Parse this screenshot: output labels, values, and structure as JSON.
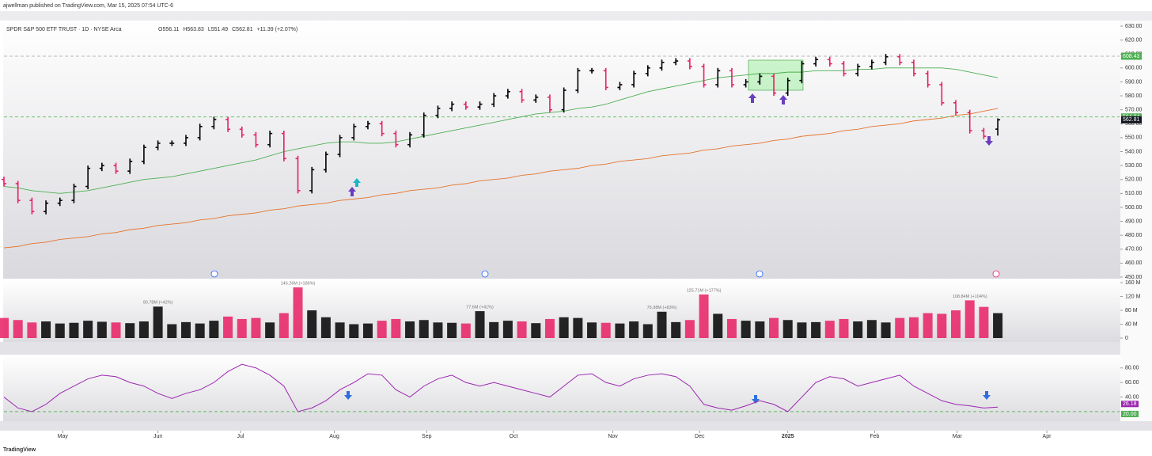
{
  "header": {
    "publisher": "ajwellman published on TradingView.com, Mar 15, 2025 07:54 UTC-6",
    "footer": "TradingView"
  },
  "chart_data": [
    {
      "type": "ohlc",
      "title": "SPDR S&P 500 ETF TRUST · 1D · NYSE Arca",
      "quote": [
        "O556.11",
        "H563.83",
        "L551.49",
        "C562.81",
        "+11.39 (+2.07%)"
      ],
      "up_color": "#000000",
      "down_color": "#e91e63",
      "xlim": [
        0,
        79.7
      ],
      "ylim": [
        450,
        630
      ],
      "yticks": [
        {
          "value": 630,
          "label": "630.00"
        },
        {
          "value": 620,
          "label": "620.00"
        },
        {
          "value": 610,
          "label": "610.00"
        },
        {
          "value": 600,
          "label": "600.00"
        },
        {
          "value": 590,
          "label": "590.00"
        },
        {
          "value": 580,
          "label": "580.00"
        },
        {
          "value": 570,
          "label": "570.00"
        },
        {
          "value": 560,
          "label": "560.00"
        },
        {
          "value": 550,
          "label": "550.00"
        },
        {
          "value": 540,
          "label": "540.00"
        },
        {
          "value": 530,
          "label": "530.00"
        },
        {
          "value": 520,
          "label": "520.00"
        },
        {
          "value": 510,
          "label": "510.00"
        },
        {
          "value": 500,
          "label": "500.00"
        },
        {
          "value": 490,
          "label": "490.00"
        },
        {
          "value": 480,
          "label": "480.00"
        },
        {
          "value": 470,
          "label": "470.00"
        },
        {
          "value": 460,
          "label": "460.00"
        },
        {
          "value": 450,
          "label": "450.00"
        }
      ],
      "open": [
        520,
        517,
        505,
        497,
        503,
        505,
        515,
        528,
        530,
        526,
        533,
        543,
        546,
        546,
        550,
        558,
        563,
        556,
        552,
        545,
        553,
        535,
        512,
        527,
        538,
        550,
        558,
        560,
        553,
        545,
        552,
        566,
        571,
        574,
        572,
        574,
        580,
        583,
        577,
        579,
        570,
        584,
        598,
        598,
        586,
        588,
        596,
        600,
        604,
        605,
        601,
        588,
        598,
        588,
        590,
        594,
        582,
        591,
        603,
        606,
        603,
        596,
        601,
        604,
        608,
        604,
        596,
        588,
        575,
        568,
        555,
        556.11
      ],
      "high": [
        522,
        519,
        507,
        505,
        507,
        517,
        530,
        532,
        532,
        535,
        545,
        548,
        548,
        552,
        560,
        565,
        565,
        558,
        554,
        555,
        555,
        537,
        529,
        540,
        552,
        560,
        562,
        562,
        555,
        554,
        568,
        573,
        576,
        576,
        576,
        582,
        585,
        585,
        581,
        581,
        586,
        600,
        600,
        600,
        590,
        598,
        602,
        606,
        607,
        607,
        603,
        600,
        600,
        592,
        596,
        596,
        593,
        605,
        608,
        608,
        605,
        603,
        606,
        610,
        610,
        606,
        598,
        590,
        577,
        570,
        557,
        563.83
      ],
      "low": [
        515,
        503,
        495,
        495,
        501,
        503,
        513,
        526,
        524,
        524,
        531,
        541,
        544,
        544,
        548,
        556,
        554,
        550,
        543,
        543,
        533,
        510,
        510,
        525,
        536,
        548,
        556,
        551,
        543,
        543,
        550,
        564,
        569,
        570,
        570,
        572,
        578,
        575,
        575,
        568,
        568,
        582,
        596,
        584,
        584,
        586,
        594,
        598,
        602,
        599,
        586,
        586,
        586,
        586,
        588,
        580,
        580,
        589,
        601,
        601,
        594,
        594,
        599,
        602,
        602,
        594,
        586,
        573,
        566,
        553,
        549,
        551.49
      ],
      "close": [
        517,
        505,
        497,
        503,
        505,
        515,
        528,
        530,
        526,
        533,
        543,
        546,
        546,
        550,
        558,
        563,
        556,
        552,
        545,
        553,
        535,
        512,
        527,
        538,
        550,
        558,
        560,
        553,
        545,
        552,
        566,
        571,
        574,
        572,
        574,
        580,
        583,
        577,
        579,
        570,
        584,
        598,
        598,
        586,
        588,
        596,
        600,
        604,
        605,
        601,
        588,
        598,
        588,
        590,
        594,
        582,
        591,
        603,
        606,
        603,
        596,
        601,
        604,
        608,
        604,
        596,
        588,
        575,
        568,
        555,
        551,
        562.81
      ],
      "overlays": [
        {
          "color": "#e5732b",
          "values": [
            471,
            472,
            474,
            475,
            477,
            478,
            479,
            481,
            482,
            484,
            485,
            487,
            488,
            489,
            491,
            492,
            494,
            495,
            496,
            498,
            499,
            501,
            502,
            503,
            505,
            506,
            507,
            509,
            510,
            512,
            513,
            514,
            516,
            517,
            519,
            520,
            521,
            523,
            524,
            526,
            527,
            528,
            530,
            531,
            533,
            534,
            535,
            537,
            538,
            539,
            541,
            542,
            544,
            545,
            546,
            548,
            549,
            551,
            552,
            553,
            555,
            556,
            558,
            559,
            560,
            562,
            563,
            564,
            566,
            567,
            569,
            571
          ]
        },
        {
          "color": "#4caf50",
          "values": [
            515,
            514,
            512,
            511,
            510,
            511,
            512,
            514,
            516,
            518,
            520,
            521,
            522,
            524,
            526,
            528,
            530,
            532,
            534,
            537,
            540,
            542,
            544,
            546,
            547,
            547,
            546,
            546,
            547,
            549,
            551,
            553,
            555,
            557,
            559,
            561,
            563,
            565,
            567,
            568,
            569,
            571,
            572,
            574,
            577,
            580,
            583,
            585,
            587,
            589,
            591,
            593,
            594,
            595,
            596,
            596,
            597,
            597,
            598,
            598,
            598,
            599,
            599,
            600,
            600,
            600,
            600,
            600,
            599,
            597,
            595,
            593
          ]
        }
      ],
      "levels": [
        {
          "value": 608.43,
          "color": "#4caf50",
          "line": "#9e9e9e"
        },
        {
          "value": 564.84,
          "color": "#4caf50",
          "line": "#4caf50"
        },
        {
          "value": 562.81,
          "color": "#131722"
        }
      ]
    },
    {
      "type": "bar",
      "xlim": [
        0,
        79.7
      ],
      "ylim": [
        0,
        160
      ],
      "yticks": [
        {
          "value": 160,
          "label": "160 M"
        },
        {
          "value": 120,
          "label": "120 M"
        },
        {
          "value": 80,
          "label": "80 M"
        },
        {
          "value": 40,
          "label": "40 M"
        },
        0
      ],
      "values": [
        58,
        52,
        45,
        48,
        42,
        44,
        50,
        47,
        45,
        43,
        48,
        90.78,
        40,
        46,
        42,
        50,
        62,
        55,
        58,
        45,
        72,
        146.26,
        80,
        60,
        45,
        40,
        42,
        50,
        55,
        48,
        52,
        45,
        44,
        42,
        77.6,
        46,
        50,
        48,
        43,
        55,
        60,
        58,
        45,
        44,
        42,
        48,
        40,
        75.98,
        46,
        52,
        125.71,
        70,
        55,
        50,
        48,
        58,
        52,
        45,
        46,
        50,
        55,
        48,
        52,
        45,
        58,
        60,
        72,
        70,
        80,
        108.84,
        90,
        72
      ],
      "value_labels": [
        null,
        null,
        null,
        null,
        null,
        null,
        null,
        null,
        null,
        null,
        null,
        "90.78M (+42%)",
        null,
        null,
        null,
        null,
        null,
        null,
        null,
        null,
        null,
        "146.26M (+186%)",
        null,
        null,
        null,
        null,
        null,
        null,
        null,
        null,
        null,
        null,
        null,
        null,
        "77.6M (+41%)",
        null,
        null,
        null,
        null,
        null,
        null,
        null,
        null,
        null,
        null,
        null,
        null,
        "75.98M (+83%)",
        null,
        null,
        "125.71M (+177%)",
        null,
        null,
        null,
        null,
        null,
        null,
        null,
        null,
        null,
        null,
        null,
        null,
        null,
        null,
        null,
        null,
        null,
        null,
        "108.84M (+104%)",
        null,
        null
      ]
    },
    {
      "type": "line",
      "color": "#9c27b0",
      "xlim": [
        0,
        79.7
      ],
      "ylim": [
        8,
        96
      ],
      "yticks": [
        {
          "value": 80,
          "label": "80.00"
        },
        {
          "value": 60,
          "label": "60.00"
        },
        {
          "value": 40,
          "label": "40.00"
        }
      ],
      "values": [
        40,
        25,
        20,
        30,
        45,
        55,
        65,
        70,
        68,
        60,
        55,
        45,
        38,
        45,
        50,
        60,
        75,
        85,
        80,
        70,
        55,
        20,
        25,
        35,
        50,
        60,
        72,
        70,
        50,
        40,
        55,
        65,
        70,
        60,
        55,
        60,
        55,
        50,
        45,
        40,
        55,
        70,
        72,
        60,
        55,
        65,
        70,
        72,
        68,
        55,
        30,
        25,
        22,
        28,
        35,
        30,
        20,
        40,
        60,
        68,
        65,
        55,
        60,
        65,
        70,
        55,
        45,
        35,
        30,
        28,
        25,
        26.18
      ],
      "levels": [
        {
          "value": 20,
          "label": "20.00",
          "color": "#4caf50"
        }
      ],
      "xticks": [
        {
          "value": 4.2,
          "label": "May"
        },
        {
          "value": 11,
          "label": "Jun"
        },
        {
          "value": 16.9,
          "label": "Jul"
        },
        {
          "value": 23.6,
          "label": "Aug"
        },
        {
          "value": 30.2,
          "label": "Sep"
        },
        {
          "value": 36.4,
          "label": "Oct"
        },
        {
          "value": 43.5,
          "label": "Nov"
        },
        {
          "value": 49.7,
          "label": "Dec"
        },
        {
          "value": 56,
          "label": "2025"
        },
        {
          "value": 62.2,
          "label": "Feb"
        },
        {
          "value": 68.1,
          "label": "Mar"
        },
        {
          "value": 74.5,
          "label": "Apr"
        }
      ]
    }
  ]
}
